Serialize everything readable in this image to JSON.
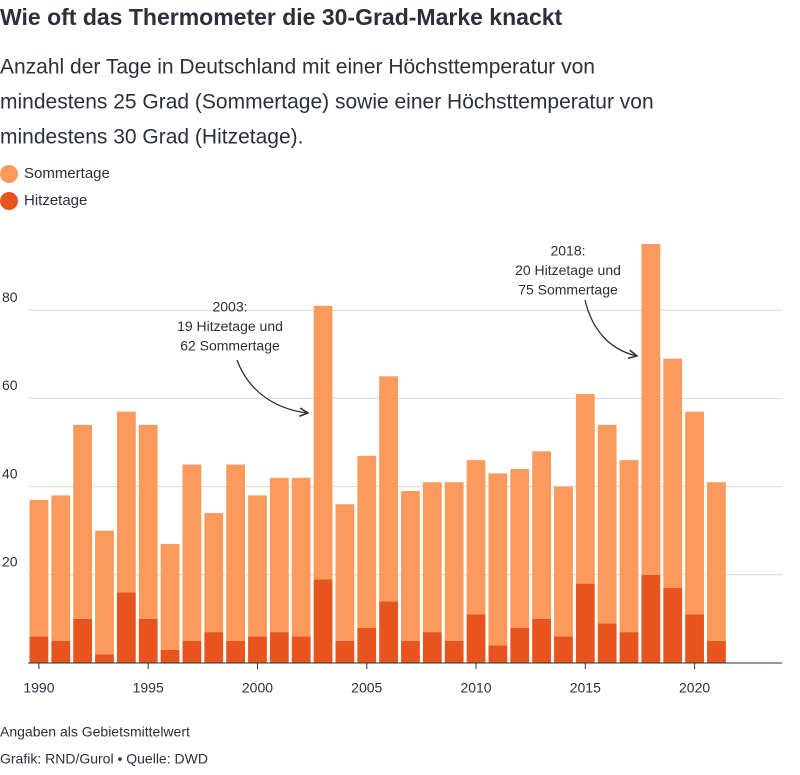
{
  "chart_data": {
    "type": "bar",
    "stacked": true,
    "title": "Wie oft das Thermometer die 30-Grad-Marke knackt",
    "subtitle": [
      "Anzahl der Tage in Deutschland mit einer Höchsttemperatur von",
      "mindestens 25 Grad (Sommertage) sowie einer Höchsttemperatur von",
      "mindestens 30 Grad (Hitzetage)."
    ],
    "x": [
      1990,
      1991,
      1992,
      1993,
      1994,
      1995,
      1996,
      1997,
      1998,
      1999,
      2000,
      2001,
      2002,
      2003,
      2004,
      2005,
      2006,
      2007,
      2008,
      2009,
      2010,
      2011,
      2012,
      2013,
      2014,
      2015,
      2016,
      2017,
      2018,
      2019,
      2020,
      2021
    ],
    "series": [
      {
        "name": "Hitzetage",
        "color": "#e8541e",
        "values": [
          6,
          5,
          10,
          2,
          16,
          10,
          3,
          5,
          7,
          5,
          6,
          7,
          6,
          19,
          5,
          8,
          14,
          5,
          7,
          5,
          11,
          4,
          8,
          10,
          6,
          18,
          9,
          7,
          20,
          17,
          11,
          5
        ]
      },
      {
        "name": "Sommertage",
        "color": "#fb9a5c",
        "values": [
          31,
          33,
          44,
          28,
          41,
          44,
          24,
          40,
          27,
          40,
          32,
          35,
          36,
          62,
          31,
          39,
          51,
          34,
          34,
          36,
          35,
          39,
          36,
          38,
          34,
          43,
          45,
          39,
          75,
          52,
          46,
          36
        ]
      }
    ],
    "legend_order": [
      1,
      0
    ],
    "xlim": [
      1989.5,
      2024
    ],
    "xticks": [
      1990,
      1995,
      2000,
      2005,
      2010,
      2015,
      2020
    ],
    "ylim": [
      0,
      100
    ],
    "yticks": [
      20,
      40,
      60,
      80
    ],
    "grid": true,
    "annotations": [
      {
        "x": 2003,
        "lines": [
          "2003:",
          "19 Hitzetage und",
          "62 Sommertage"
        ]
      },
      {
        "x": 2018,
        "lines": [
          "2018:",
          "20 Hitzetage und",
          "75 Sommertage"
        ]
      }
    ],
    "notes": [
      "Angaben als Gebietsmittelwert",
      "Grafik: RND/Gurol • Quelle: DWD"
    ]
  }
}
